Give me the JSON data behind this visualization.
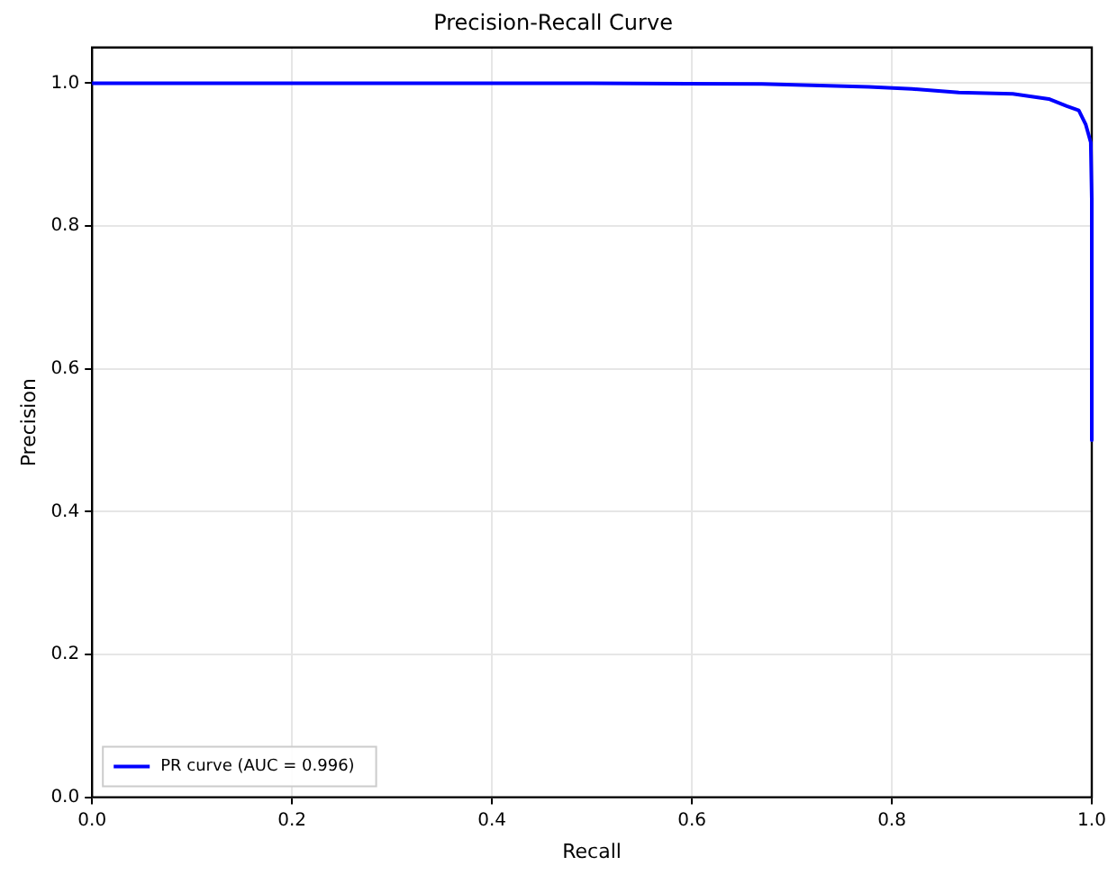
{
  "chart_data": {
    "type": "line",
    "title": "Precision-Recall Curve",
    "xlabel": "Recall",
    "ylabel": "Precision",
    "xlim": [
      0,
      1
    ],
    "ylim": [
      0,
      1.05
    ],
    "xticks": [
      {
        "value": 0,
        "label": "0.0"
      },
      0.2,
      0.4,
      0.6,
      0.8,
      {
        "value": 1,
        "label": "1.0"
      }
    ],
    "yticks": [
      {
        "value": 0,
        "label": "0.0"
      },
      0.2,
      0.4,
      0.6,
      0.8,
      {
        "value": 1,
        "label": "1.0"
      }
    ],
    "grid": true,
    "legend": "bottom left",
    "marker": "none",
    "line_style": "solid",
    "series": [
      {
        "name": "PR curve (AUC = 0.996)",
        "color": "#0000ff",
        "x": [
          0,
          0.3,
          0.5,
          0.67,
          0.72,
          0.777,
          0.82,
          0.867,
          0.921,
          0.957,
          0.975,
          0.987,
          0.994,
          0.999,
          1.0,
          1.0
        ],
        "values": [
          1.0,
          1.0,
          1.0,
          0.999,
          0.997,
          0.995,
          0.992,
          0.987,
          0.985,
          0.978,
          0.968,
          0.962,
          0.942,
          0.917,
          0.837,
          0.5
        ]
      }
    ]
  }
}
